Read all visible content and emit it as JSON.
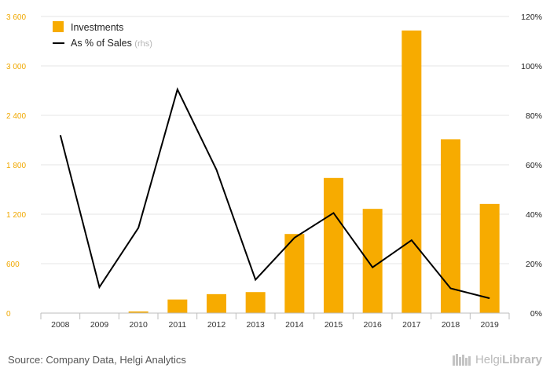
{
  "chart_data": {
    "type": "bar",
    "categories": [
      "2008",
      "2009",
      "2010",
      "2011",
      "2012",
      "2013",
      "2014",
      "2015",
      "2016",
      "2017",
      "2018",
      "2019"
    ],
    "series": [
      {
        "name": "Investments",
        "kind": "bar",
        "axis": "left",
        "color": "#f7ab00",
        "values": [
          0,
          0,
          20,
          165,
          230,
          255,
          960,
          1640,
          1265,
          3430,
          2110,
          1325
        ]
      },
      {
        "name": "As % of Sales",
        "kind": "line",
        "axis": "right",
        "color": "#000000",
        "values": [
          72,
          10.5,
          34.5,
          90.5,
          58,
          13.5,
          30.5,
          40.5,
          18.5,
          29.5,
          10,
          6
        ]
      }
    ],
    "legend": [
      {
        "label": "Investments",
        "note": ""
      },
      {
        "label": "As % of Sales",
        "note": "(rhs)"
      }
    ],
    "y_left": {
      "ticks": [
        "0",
        "600",
        "1 200",
        "1 800",
        "2 400",
        "3 000",
        "3 600"
      ],
      "ylim": [
        0,
        3600
      ]
    },
    "y_right": {
      "ticks": [
        "0%",
        "20%",
        "40%",
        "60%",
        "80%",
        "100%",
        "120%"
      ],
      "ylim": [
        0,
        120
      ]
    },
    "legend_position": "top-left",
    "grid": true
  },
  "footer": {
    "source": "Source: Company Data, Helgi Analytics",
    "logo_part1": "Helgi",
    "logo_part2": "Library"
  }
}
